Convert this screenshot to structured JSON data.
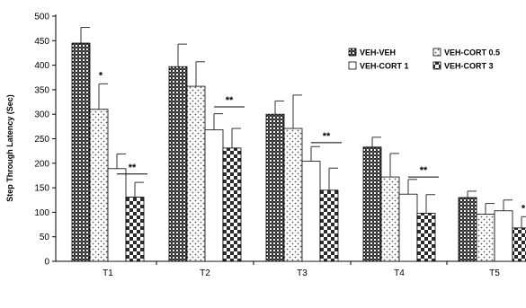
{
  "chart_data": {
    "type": "bar",
    "ylabel": "Step Through Latency (Sec)",
    "xlabel": "",
    "ylim": [
      0,
      500
    ],
    "yticks": [
      0,
      50,
      100,
      150,
      200,
      250,
      300,
      350,
      400,
      450,
      500
    ],
    "categories": [
      "T1",
      "T2",
      "T3",
      "T4",
      "T5"
    ],
    "legend_position": "top-right",
    "grid": false,
    "series": [
      {
        "name": "VEH-VEH",
        "values": [
          445,
          397,
          300,
          233,
          130
        ],
        "errors": [
          32,
          46,
          27,
          20,
          13
        ],
        "pattern": "dense-checker"
      },
      {
        "name": "VEH-CORT 0.5",
        "values": [
          null,
          357,
          271,
          172,
          96
        ],
        "errors": [
          null,
          50,
          68,
          48,
          22
        ],
        "pattern": "dots"
      },
      {
        "name": "VEH-CORT 1",
        "values": [
          189,
          268,
          204,
          137,
          103
        ],
        "errors": [
          30,
          33,
          30,
          30,
          22
        ],
        "pattern": "blank"
      },
      {
        "name": "VEH-CORT 3",
        "values": [
          131,
          231,
          145,
          98,
          68
        ],
        "errors": [
          30,
          40,
          45,
          38,
          23
        ],
        "pattern": "checker"
      }
    ],
    "t1_veh_cort_05": {
      "value": 310,
      "error": 52
    },
    "significance": [
      {
        "category": "T1",
        "label": "*",
        "marker": "single",
        "series_index": 1
      },
      {
        "category": "T1",
        "label": "**",
        "marker": "bracket",
        "from_series": 2,
        "to_series": 3,
        "y": 178
      },
      {
        "category": "T2",
        "label": "**",
        "marker": "bracket",
        "from_series": 2,
        "to_series": 3,
        "y": 315
      },
      {
        "category": "T3",
        "label": "**",
        "marker": "bracket",
        "from_series": 2,
        "to_series": 3,
        "y": 242
      },
      {
        "category": "T4",
        "label": "**",
        "marker": "bracket",
        "from_series": 2,
        "to_series": 3,
        "y": 172
      },
      {
        "category": "T5",
        "label": "*",
        "marker": "single",
        "series_index": 3
      }
    ],
    "colors": {
      "axis": "#000000",
      "fill_dark": "#2b2b2b",
      "fill_light": "#ffffff"
    }
  }
}
